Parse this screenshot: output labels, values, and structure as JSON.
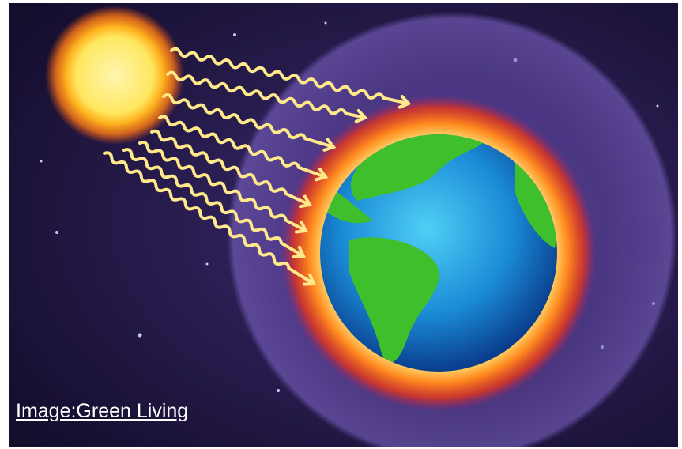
{
  "caption": "Image:Green Living"
}
